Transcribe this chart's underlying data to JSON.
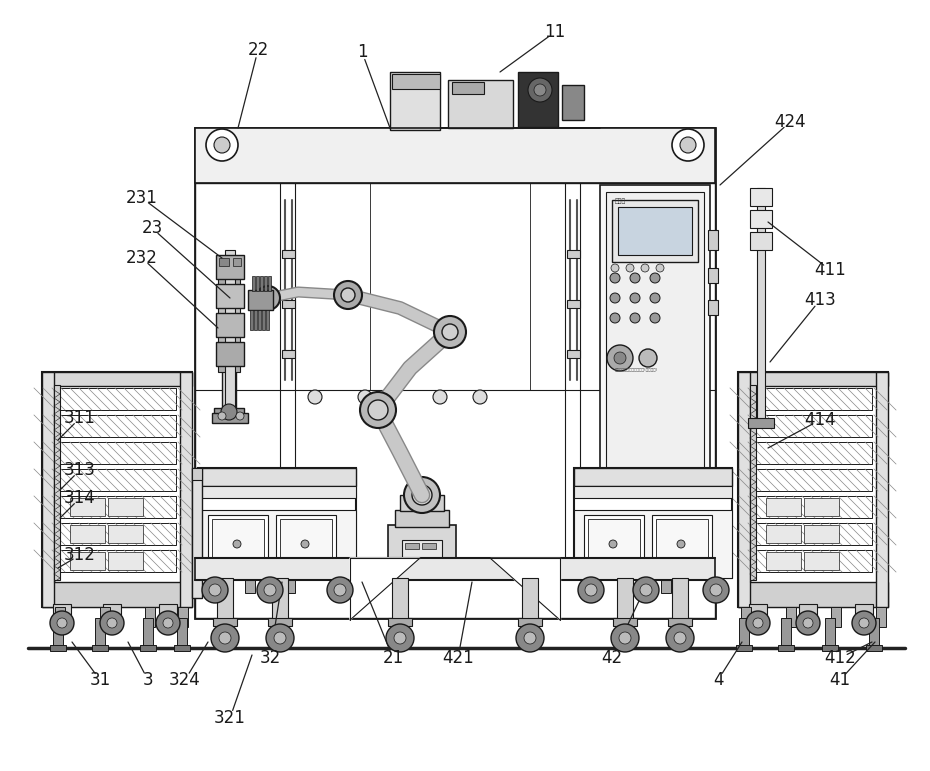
{
  "bg_color": "#ffffff",
  "line_color": "#1a1a1a",
  "fig_width": 9.3,
  "fig_height": 7.71,
  "dpi": 100,
  "labels": [
    [
      "1",
      362,
      52
    ],
    [
      "11",
      555,
      32
    ],
    [
      "22",
      258,
      50
    ],
    [
      "23",
      152,
      228
    ],
    [
      "231",
      142,
      198
    ],
    [
      "232",
      142,
      258
    ],
    [
      "21",
      393,
      658
    ],
    [
      "3",
      148,
      680
    ],
    [
      "31",
      100,
      680
    ],
    [
      "311",
      80,
      418
    ],
    [
      "312",
      80,
      555
    ],
    [
      "313",
      80,
      470
    ],
    [
      "314",
      80,
      498
    ],
    [
      "32",
      270,
      658
    ],
    [
      "321",
      230,
      718
    ],
    [
      "324",
      185,
      680
    ],
    [
      "4",
      718,
      680
    ],
    [
      "41",
      840,
      680
    ],
    [
      "411",
      830,
      270
    ],
    [
      "412",
      840,
      658
    ],
    [
      "413",
      820,
      300
    ],
    [
      "414",
      820,
      420
    ],
    [
      "42",
      612,
      658
    ],
    [
      "421",
      458,
      658
    ],
    [
      "424",
      790,
      122
    ]
  ],
  "leader_lines": [
    [
      "1",
      362,
      52,
      390,
      128
    ],
    [
      "11",
      555,
      32,
      500,
      72
    ],
    [
      "22",
      258,
      50,
      238,
      128
    ],
    [
      "23",
      152,
      228,
      230,
      298
    ],
    [
      "231",
      142,
      198,
      222,
      258
    ],
    [
      "232",
      142,
      258,
      218,
      328
    ],
    [
      "21",
      393,
      658,
      362,
      582
    ],
    [
      "3",
      148,
      680,
      128,
      642
    ],
    [
      "31",
      100,
      680,
      72,
      642
    ],
    [
      "311",
      80,
      418,
      58,
      440
    ],
    [
      "312",
      80,
      555,
      58,
      568
    ],
    [
      "313",
      80,
      470,
      60,
      490
    ],
    [
      "314",
      80,
      498,
      60,
      518
    ],
    [
      "32",
      270,
      658,
      282,
      582
    ],
    [
      "321",
      230,
      718,
      252,
      655
    ],
    [
      "324",
      185,
      680,
      208,
      642
    ],
    [
      "4",
      718,
      680,
      742,
      642
    ],
    [
      "41",
      840,
      680,
      875,
      642
    ],
    [
      "411",
      830,
      270,
      768,
      222
    ],
    [
      "412",
      840,
      658,
      872,
      642
    ],
    [
      "413",
      820,
      300,
      770,
      362
    ],
    [
      "414",
      820,
      420,
      768,
      448
    ],
    [
      "42",
      612,
      658,
      648,
      582
    ],
    [
      "421",
      458,
      658,
      472,
      582
    ],
    [
      "424",
      790,
      122,
      720,
      185
    ]
  ]
}
